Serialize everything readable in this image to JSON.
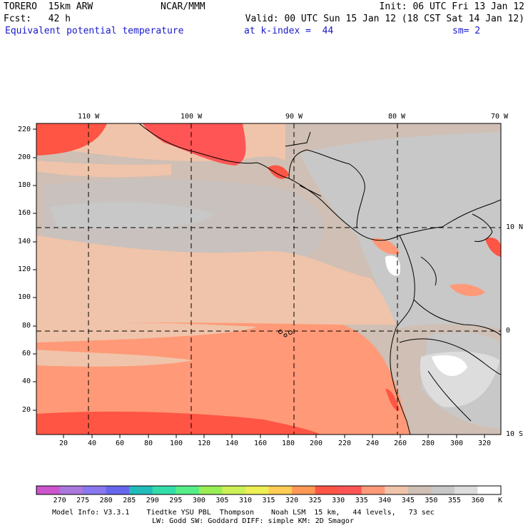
{
  "header": {
    "model": "TORERO  15km ARW",
    "center": "NCAR/MMM",
    "init": "Init: 06 UTC Fri 13 Jan 12",
    "fcst": "Fcst:   42 h",
    "valid": "Valid: 00 UTC Sun 15 Jan 12 (18 CST Sat 14 Jan 12)",
    "field": "Equivalent potential temperature",
    "level": "at k-index =  44",
    "smoothing": "sm= 2"
  },
  "map": {
    "top_lon_labels": [
      "110 W",
      "100 W",
      "90 W",
      "80 W",
      "70 W"
    ],
    "right_lat_labels": [
      "10 N",
      "0",
      "10 S"
    ],
    "left_grid_labels": [
      "220",
      "200",
      "180",
      "160",
      "140",
      "120",
      "100",
      "80",
      "60",
      "40",
      "20"
    ],
    "bottom_grid_labels": [
      "20",
      "40",
      "60",
      "80",
      "100",
      "120",
      "140",
      "160",
      "180",
      "200",
      "220",
      "240",
      "260",
      "280",
      "300",
      "320"
    ]
  },
  "colorbar": {
    "levels": [
      "270",
      "275",
      "280",
      "285",
      "290",
      "295",
      "300",
      "305",
      "310",
      "315",
      "320",
      "325",
      "330",
      "335",
      "340",
      "345",
      "350",
      "355",
      "360"
    ],
    "unit": "K",
    "colors": [
      "#cc55cc",
      "#aa77dd",
      "#8877ee",
      "#6666ee",
      "#22bbbb",
      "#33ddaa",
      "#55ee88",
      "#99ee55",
      "#ccf055",
      "#eeee55",
      "#ffcc55",
      "#ff9955",
      "#ff5544",
      "#ff5555",
      "#ff9977",
      "#f0c4aa",
      "#cfbfb4",
      "#c8c8c8",
      "#dddddd",
      "#ffffff"
    ]
  },
  "footer": {
    "line1": "Model Info: V3.3.1    Tiedtke YSU PBL  Thompson    Noah LSM  15 km,   44 levels,   73 sec",
    "line2": "LW: Godd SW: Goddard DIFF: simple KM: 2D Smagor"
  }
}
